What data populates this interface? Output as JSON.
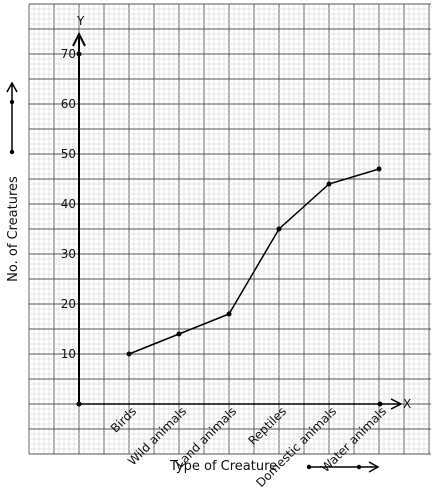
{
  "chart_data": {
    "type": "line",
    "title": "",
    "xlabel": "Type of Creature",
    "ylabel": "No. of Creatures",
    "x_axis_letter": "X",
    "y_axis_letter": "Y",
    "categories": [
      "Birds",
      "Wild animals",
      "Land animals",
      "Reptiles",
      "Domestic animals",
      "Water animals"
    ],
    "values": [
      10,
      14,
      18,
      35,
      44,
      47
    ],
    "yticks": [
      10,
      20,
      30,
      40,
      50,
      60,
      70
    ],
    "ylim": [
      0,
      70
    ],
    "grid": true,
    "legend": "none",
    "colors": {
      "line": "#000000",
      "grid_minor": "#cccccc",
      "grid_major": "#555555",
      "background": "#ffffff"
    }
  }
}
